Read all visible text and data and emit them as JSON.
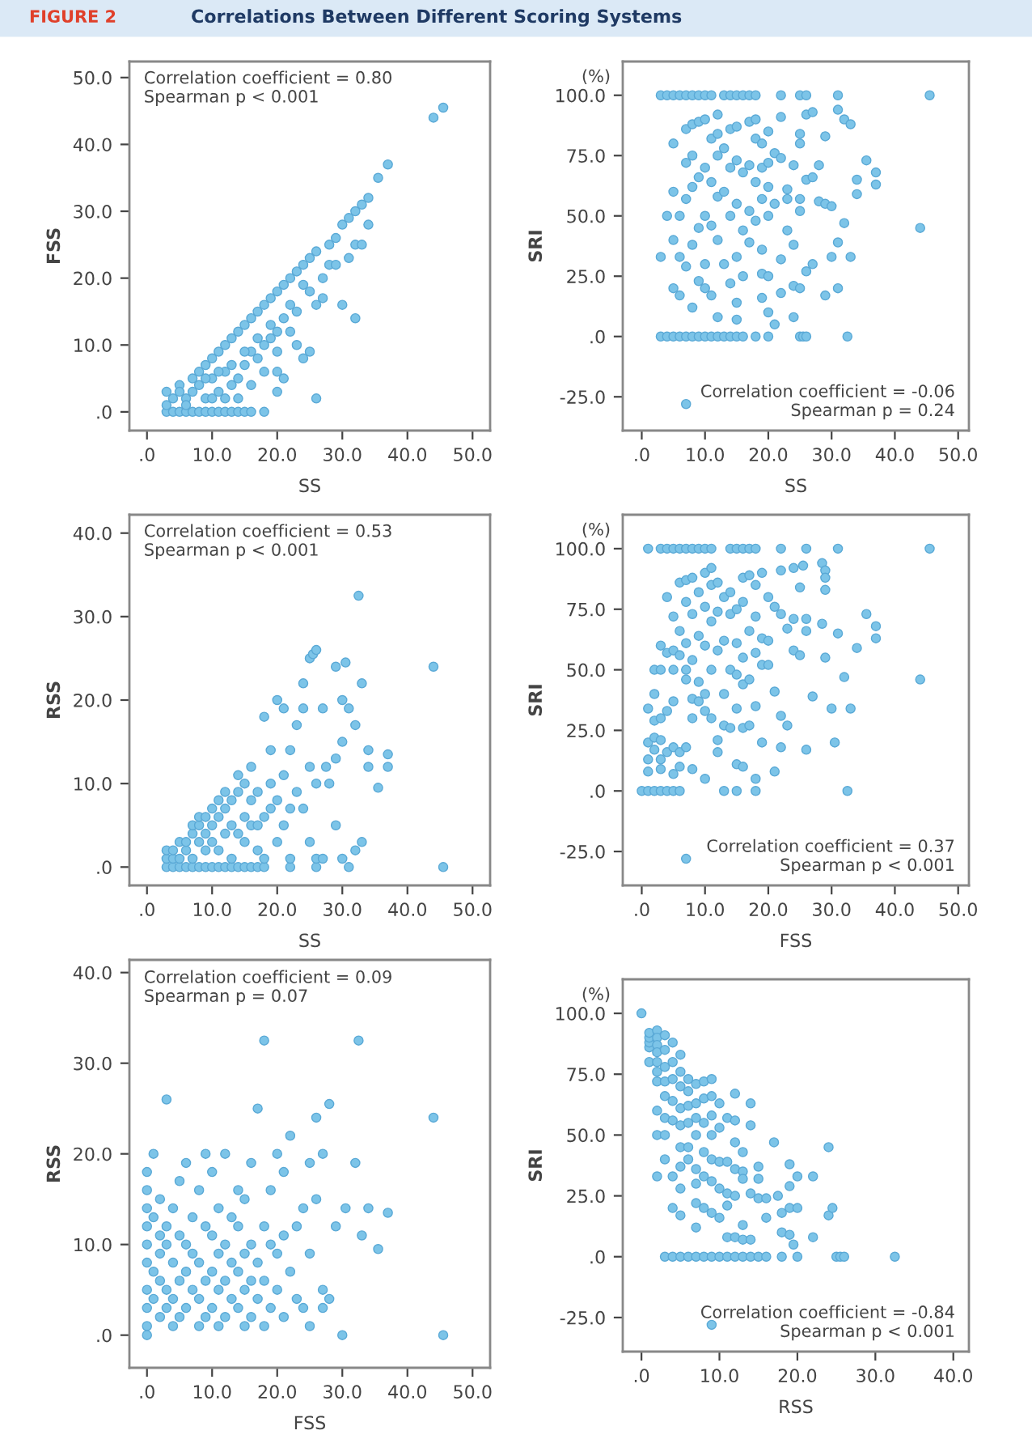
{
  "chart_data": [
    {
      "type": "scatter",
      "title": "Correlations Between Different Scoring Systems",
      "subtitle": "FIGURE 2",
      "xlabel": "SS",
      "ylabel": "FSS",
      "annotations": [
        "Correlation coefficient = 0.80\nSpearman p < 0.001"
      ],
      "color": "#7cc4e8",
      "marker": "circle",
      "xlim": [
        -2.7,
        52.7
      ],
      "xticks": [
        {
          "value": 0,
          "label": ".0"
        },
        {
          "value": 10,
          "label": "10.0"
        },
        {
          "value": 20,
          "label": "20.0"
        },
        {
          "value": 30,
          "label": "30.0"
        },
        {
          "value": 40,
          "label": "40.0"
        },
        {
          "value": 50,
          "label": "50.0"
        }
      ],
      "ylim": [
        -2.8,
        52.4
      ],
      "yticks": [
        {
          "value": 0,
          "label": ".0"
        },
        {
          "value": 10,
          "label": "10.0"
        },
        {
          "value": 20,
          "label": "20.0"
        },
        {
          "value": 30,
          "label": "30.0"
        },
        {
          "value": 40,
          "label": "40.0"
        },
        {
          "value": 50,
          "label": "50.0"
        }
      ],
      "x": [
        3,
        4,
        5,
        6,
        7,
        8,
        9,
        10,
        11,
        12,
        13,
        14,
        15,
        16,
        18,
        3,
        3,
        4,
        5,
        6,
        7,
        8,
        9,
        10,
        11,
        12,
        13,
        14,
        15,
        16,
        17,
        18,
        19,
        20,
        21,
        22,
        23,
        24,
        25,
        26,
        28,
        29,
        30,
        31,
        32,
        33,
        34,
        35.5,
        37,
        44,
        45.5,
        7,
        8,
        9,
        10,
        11,
        12,
        13,
        14,
        15,
        16,
        12,
        10,
        14,
        16,
        17,
        18,
        18,
        19,
        19,
        20,
        20,
        20,
        20,
        21,
        21,
        22,
        23,
        23,
        24,
        25,
        25,
        26,
        26,
        27,
        27,
        30,
        32,
        31,
        32,
        33,
        34,
        28,
        29,
        24,
        22,
        17,
        15,
        13,
        11,
        9,
        6,
        5
      ],
      "values": [
        0,
        0,
        0,
        0,
        0,
        0,
        0,
        0,
        0,
        0,
        0,
        0,
        0,
        0,
        0,
        1,
        3,
        2,
        4,
        2,
        5,
        6,
        7,
        8,
        9,
        10,
        11,
        12,
        13,
        14,
        15,
        16,
        17,
        18,
        19,
        20,
        21,
        22,
        23,
        24,
        25,
        26,
        28,
        29,
        30,
        31,
        32,
        35,
        37,
        44,
        45.5,
        3,
        4,
        2,
        5,
        3,
        6,
        4,
        5,
        7,
        4,
        2,
        2,
        2,
        9,
        8,
        10,
        6,
        11,
        13,
        12,
        9,
        3,
        6,
        5,
        14,
        12,
        15,
        10,
        8,
        9,
        18,
        2,
        16,
        17,
        20,
        16,
        14,
        23,
        25,
        25,
        28,
        22,
        22,
        19,
        16,
        11,
        9,
        7,
        6,
        5,
        1,
        3
      ]
    },
    {
      "type": "scatter",
      "xlabel": "SS",
      "ylabel": "SRI",
      "annotations": [
        "(%)",
        "Correlation coefficient = -0.06\nSpearman p = 0.24"
      ],
      "color": "#7cc4e8",
      "marker": "circle",
      "xlim": [
        -3.0,
        51.7
      ],
      "xticks": [
        {
          "value": 0,
          "label": ".0"
        },
        {
          "value": 10,
          "label": "10.0"
        },
        {
          "value": 20,
          "label": "20.0"
        },
        {
          "value": 30,
          "label": "30.0"
        },
        {
          "value": 40,
          "label": "40.0"
        },
        {
          "value": 50,
          "label": "50.0"
        }
      ],
      "ylim": [
        -39,
        114
      ],
      "yticks": [
        {
          "value": -25,
          "label": "-25.0"
        },
        {
          "value": 0,
          "label": ".0"
        },
        {
          "value": 25,
          "label": "25.0"
        },
        {
          "value": 50,
          "label": "50.0"
        },
        {
          "value": 75,
          "label": "75.0"
        },
        {
          "value": 100,
          "label": "100.0"
        }
      ],
      "x": [
        3,
        4,
        5,
        6,
        7,
        8,
        9,
        10,
        11,
        13,
        14,
        15,
        16,
        17,
        18,
        22,
        25,
        26,
        31,
        45.5,
        3,
        4,
        5,
        6,
        7,
        8,
        9,
        10,
        11,
        12,
        13,
        14,
        15,
        16,
        18,
        20,
        25,
        25.5,
        26,
        32.5,
        3,
        4,
        5,
        5,
        5,
        5,
        6,
        6,
        6,
        7,
        7,
        7,
        7,
        7,
        8,
        8,
        8,
        8,
        8,
        9,
        9,
        9,
        9,
        10,
        10,
        10,
        10,
        10,
        11,
        11,
        11,
        11,
        12,
        12,
        12,
        12,
        12,
        12,
        13,
        13,
        13,
        14,
        14,
        14,
        14,
        15,
        15,
        15,
        15,
        15,
        15,
        16,
        16,
        16,
        17,
        17,
        17,
        17,
        18,
        18,
        18,
        18,
        19,
        19,
        19,
        19,
        19,
        19,
        20,
        20,
        20,
        20,
        20,
        20,
        21,
        21,
        21,
        22,
        22,
        22,
        22,
        23,
        23,
        23,
        24,
        24,
        24,
        24,
        25,
        25,
        25,
        25,
        25,
        26,
        26,
        26,
        27,
        27,
        27,
        28,
        28,
        29,
        29,
        29,
        30,
        30,
        31,
        31,
        31,
        32,
        32,
        33,
        33,
        34,
        34,
        35.5,
        37,
        37,
        44
      ],
      "values": [
        100,
        100,
        100,
        100,
        100,
        100,
        100,
        100,
        100,
        100,
        100,
        100,
        100,
        100,
        100,
        100,
        100,
        100,
        100,
        100,
        0,
        0,
        0,
        0,
        0,
        0,
        0,
        0,
        0,
        0,
        0,
        0,
        0,
        0,
        0,
        0,
        0,
        0,
        0,
        0,
        33,
        50,
        80,
        60,
        40,
        20,
        33,
        17,
        50,
        72,
        86,
        57,
        29,
        -28,
        88,
        75,
        62,
        38,
        12,
        89,
        66,
        45,
        23,
        90,
        70,
        50,
        30,
        20,
        82,
        64,
        46,
        17,
        92,
        84,
        75,
        58,
        40,
        8,
        78,
        60,
        30,
        86,
        70,
        50,
        22,
        87,
        73,
        55,
        33,
        14,
        7,
        68,
        44,
        25,
        89,
        71,
        52,
        39,
        90,
        82,
        64,
        48,
        80,
        70,
        57,
        36,
        26,
        16,
        85,
        72,
        62,
        50,
        25,
        10,
        76,
        55,
        5,
        91,
        74,
        32,
        18,
        61,
        44,
        57,
        71,
        38,
        21,
        8,
        84,
        80,
        57,
        52,
        20,
        92,
        65,
        27,
        93,
        66,
        30,
        71,
        56,
        83,
        55,
        17,
        54,
        33,
        94,
        39,
        20,
        90,
        47,
        88,
        33,
        65,
        59,
        73,
        68,
        63,
        45
      ]
    },
    {
      "type": "scatter",
      "xlabel": "SS",
      "ylabel": "RSS",
      "annotations": [
        "Correlation coefficient = 0.53\nSpearman p < 0.001"
      ],
      "color": "#7cc4e8",
      "marker": "circle",
      "xlim": [
        -2.7,
        52.7
      ],
      "xticks": [
        {
          "value": 0,
          "label": ".0"
        },
        {
          "value": 10,
          "label": "10.0"
        },
        {
          "value": 20,
          "label": "20.0"
        },
        {
          "value": 30,
          "label": "30.0"
        },
        {
          "value": 40,
          "label": "40.0"
        },
        {
          "value": 50,
          "label": "50.0"
        }
      ],
      "ylim": [
        -2.2,
        42.2
      ],
      "yticks": [
        {
          "value": 0,
          "label": ".0"
        },
        {
          "value": 10,
          "label": "10.0"
        },
        {
          "value": 20,
          "label": "20.0"
        },
        {
          "value": 30,
          "label": "30.0"
        },
        {
          "value": 40,
          "label": "40.0"
        }
      ],
      "x": [
        3,
        4,
        5,
        6,
        7,
        8,
        9,
        10,
        11,
        12,
        13,
        14,
        15,
        16,
        17,
        18,
        22,
        26,
        31,
        45.5,
        3,
        3,
        4,
        4,
        5,
        5,
        6,
        6,
        7,
        7,
        7,
        8,
        8,
        8,
        9,
        9,
        9,
        10,
        10,
        10,
        11,
        11,
        11,
        12,
        12,
        12,
        13,
        13,
        13,
        14,
        14,
        14,
        15,
        15,
        15,
        16,
        16,
        16,
        17,
        17,
        17,
        18,
        18,
        18,
        19,
        19,
        19,
        20,
        20,
        20,
        21,
        21,
        21,
        22,
        22,
        22,
        23,
        23,
        24,
        24,
        24,
        25,
        25,
        25,
        25.5,
        26,
        26,
        26,
        27,
        27,
        27.5,
        28,
        29,
        29,
        29,
        30,
        30,
        30,
        30.5,
        31,
        32,
        32,
        32.5,
        33,
        33,
        34,
        34,
        35.5,
        37,
        37,
        44
      ],
      "values": [
        0,
        0,
        0,
        0,
        0,
        0,
        0,
        0,
        0,
        0,
        0,
        0,
        0,
        0,
        0,
        0,
        0,
        0,
        0,
        0,
        1,
        2,
        1,
        2,
        3,
        1,
        2,
        3,
        4,
        5,
        1,
        3,
        5,
        6,
        2,
        4,
        6,
        3,
        5,
        7,
        2,
        6,
        8,
        4,
        7,
        9,
        1,
        5,
        8,
        4,
        9,
        11,
        3,
        6,
        10,
        5,
        8,
        12,
        2,
        5,
        9,
        1,
        6,
        18,
        7,
        10,
        14,
        3,
        8,
        20,
        5,
        11,
        19,
        1,
        7,
        14,
        9,
        17,
        7,
        19,
        22,
        3,
        12,
        25,
        25.5,
        1,
        10,
        26,
        1,
        19,
        12,
        10,
        5,
        13,
        24,
        1,
        15,
        20,
        24.5,
        19,
        2,
        17,
        32.5,
        3,
        22,
        12,
        14,
        9.5,
        12,
        13.5,
        24
      ]
    },
    {
      "type": "scatter",
      "xlabel": "FSS",
      "ylabel": "SRI",
      "annotations": [
        "(%)",
        "Correlation coefficient = 0.37\nSpearman p < 0.001"
      ],
      "color": "#7cc4e8",
      "marker": "circle",
      "xlim": [
        -3.0,
        51.7
      ],
      "xticks": [
        {
          "value": 0,
          "label": ".0"
        },
        {
          "value": 10,
          "label": "10.0"
        },
        {
          "value": 20,
          "label": "20.0"
        },
        {
          "value": 30,
          "label": "30.0"
        },
        {
          "value": 40,
          "label": "40.0"
        },
        {
          "value": 50,
          "label": "50.0"
        }
      ],
      "ylim": [
        -39,
        114
      ],
      "yticks": [
        {
          "value": -25,
          "label": "-25.0"
        },
        {
          "value": 0,
          "label": ".0"
        },
        {
          "value": 25,
          "label": "25.0"
        },
        {
          "value": 50,
          "label": "50.0"
        },
        {
          "value": 75,
          "label": "75.0"
        },
        {
          "value": 100,
          "label": "100.0"
        }
      ],
      "x": [
        1,
        3,
        4,
        5,
        6,
        7,
        8,
        9,
        10,
        11,
        14,
        15,
        16,
        17,
        18,
        22,
        26,
        31,
        45.5,
        0,
        1,
        2,
        3,
        4,
        5,
        6,
        13,
        15,
        18,
        32.5,
        1,
        1,
        1,
        1,
        2,
        2,
        2,
        2,
        2,
        3,
        3,
        3,
        3,
        3,
        3,
        4,
        4,
        4,
        4,
        5,
        5,
        5,
        5,
        5,
        5,
        6,
        6,
        6,
        6,
        6,
        7,
        7,
        7,
        7,
        7,
        7,
        7,
        8,
        8,
        8,
        8,
        8,
        8,
        9,
        9,
        9,
        9,
        10,
        10,
        10,
        10,
        10,
        10,
        11,
        11,
        11,
        11,
        11,
        12,
        12,
        12,
        12,
        12,
        13,
        13,
        13,
        13,
        14,
        14,
        14,
        14,
        15,
        15,
        15,
        15,
        15,
        16,
        16,
        16,
        16,
        16,
        16,
        17,
        17,
        17,
        17,
        18,
        18,
        18,
        18,
        18,
        19,
        19,
        19,
        19,
        20,
        20,
        20,
        21,
        21,
        21,
        22,
        22,
        22,
        22,
        23,
        23,
        24,
        24,
        24,
        25,
        25,
        25.5,
        26,
        26,
        26,
        27,
        28.5,
        28.5,
        29,
        29,
        29,
        29,
        30,
        30.5,
        31,
        32,
        33,
        34,
        35.5,
        37,
        37,
        44
      ],
      "values": [
        100,
        100,
        100,
        100,
        100,
        100,
        100,
        100,
        100,
        100,
        100,
        100,
        100,
        100,
        100,
        100,
        100,
        100,
        100,
        0,
        0,
        0,
        0,
        0,
        0,
        0,
        0,
        0,
        0,
        0,
        34,
        20,
        8,
        13,
        50,
        40,
        29,
        22,
        17,
        60,
        50,
        30,
        21,
        13,
        9,
        80,
        57,
        33,
        16,
        72,
        58,
        50,
        37,
        18,
        7,
        86,
        66,
        56,
        16,
        10,
        87,
        78,
        61,
        50,
        46,
        18,
        -28,
        88,
        73,
        54,
        38,
        30,
        9,
        82,
        64,
        45,
        37,
        90,
        76,
        60,
        40,
        33,
        5,
        92,
        85,
        70,
        50,
        30,
        86,
        74,
        58,
        21,
        16,
        80,
        62,
        40,
        27,
        82,
        73,
        50,
        26,
        75,
        61,
        48,
        34,
        11,
        88,
        78,
        55,
        44,
        26,
        10,
        89,
        66,
        46,
        27,
        85,
        72,
        57,
        35,
        5,
        90,
        63,
        52,
        20,
        80,
        62,
        52,
        76,
        41,
        8,
        91,
        73,
        31,
        18,
        67,
        27,
        92,
        71,
        58,
        84,
        56,
        93,
        71,
        66,
        17,
        39,
        94,
        69,
        91,
        88,
        83,
        55,
        34,
        20,
        65,
        47,
        34,
        59,
        73,
        68,
        63,
        46
      ]
    },
    {
      "type": "scatter",
      "xlabel": "FSS",
      "ylabel": "RSS",
      "annotations": [
        "Correlation coefficient = 0.09\nSpearman p = 0.07"
      ],
      "color": "#7cc4e8",
      "marker": "circle",
      "xlim": [
        -2.7,
        52.7
      ],
      "xticks": [
        {
          "value": 0,
          "label": ".0"
        },
        {
          "value": 10,
          "label": "10.0"
        },
        {
          "value": 20,
          "label": "20.0"
        },
        {
          "value": 30,
          "label": "30.0"
        },
        {
          "value": 40,
          "label": "40.0"
        },
        {
          "value": 50,
          "label": "50.0"
        }
      ],
      "ylim": [
        -3.6,
        41.4
      ],
      "yticks": [
        {
          "value": 0,
          "label": ".0"
        },
        {
          "value": 10,
          "label": "10.0"
        },
        {
          "value": 20,
          "label": "20.0"
        },
        {
          "value": 30,
          "label": "30.0"
        },
        {
          "value": 40,
          "label": "40.0"
        }
      ],
      "x": [
        0,
        0,
        0,
        0,
        0,
        0,
        0,
        0,
        0,
        0,
        1,
        1,
        1,
        1,
        2,
        2,
        2,
        2,
        2,
        3,
        3,
        3,
        3,
        3,
        4,
        4,
        4,
        4,
        5,
        5,
        5,
        5,
        6,
        6,
        6,
        6,
        7,
        7,
        7,
        8,
        8,
        8,
        8,
        9,
        9,
        9,
        9,
        10,
        10,
        10,
        10,
        11,
        11,
        11,
        11,
        12,
        12,
        12,
        12,
        13,
        13,
        13,
        14,
        14,
        14,
        14,
        15,
        15,
        15,
        15,
        16,
        16,
        16,
        16,
        17,
        17,
        17,
        18,
        18,
        18,
        18,
        19,
        19,
        19,
        20,
        20,
        20,
        21,
        21,
        21,
        22,
        22,
        23,
        23,
        24,
        24,
        25,
        25,
        25,
        26,
        26,
        27,
        27,
        27,
        28,
        28,
        29,
        30,
        30.5,
        32,
        32.5,
        33,
        34,
        35.5,
        37,
        44,
        45.5
      ],
      "values": [
        0,
        1,
        3,
        5,
        8,
        10,
        12,
        14,
        16,
        18,
        4,
        7,
        13,
        20,
        2,
        6,
        9,
        11,
        15,
        3,
        5,
        10,
        12,
        26,
        1,
        4,
        8,
        14,
        2,
        6,
        11,
        17,
        3,
        7,
        10,
        19,
        5,
        9,
        13,
        1,
        4,
        8,
        16,
        2,
        6,
        12,
        20,
        3,
        7,
        11,
        18,
        1,
        5,
        9,
        14,
        2,
        6,
        10,
        20,
        4,
        8,
        13,
        3,
        7,
        12,
        16,
        1,
        5,
        9,
        15,
        2,
        6,
        10,
        19,
        4,
        8,
        25,
        1,
        6,
        12,
        32.5,
        3,
        10,
        16,
        5,
        9,
        20,
        2,
        11,
        18,
        7,
        22,
        4,
        12,
        3,
        14,
        1,
        9,
        19,
        24,
        15,
        3,
        5,
        20,
        4,
        25.5,
        12,
        0,
        14,
        19,
        32.5,
        11,
        14,
        9.5,
        13.5,
        24,
        0
      ]
    },
    {
      "type": "scatter",
      "xlabel": "RSS",
      "ylabel": "SRI",
      "annotations": [
        "(%)",
        "Correlation coefficient = -0.84\nSpearman p < 0.001"
      ],
      "color": "#7cc4e8",
      "marker": "circle",
      "xlim": [
        -2.4,
        42.0
      ],
      "xticks": [
        {
          "value": 0,
          "label": ".0"
        },
        {
          "value": 10,
          "label": "10.0"
        },
        {
          "value": 20,
          "label": "20.0"
        },
        {
          "value": 30,
          "label": "30.0"
        },
        {
          "value": 40,
          "label": "40.0"
        }
      ],
      "ylim": [
        -39,
        114
      ],
      "yticks": [
        {
          "value": -25,
          "label": "-25.0"
        },
        {
          "value": 0,
          "label": ".0"
        },
        {
          "value": 25,
          "label": "25.0"
        },
        {
          "value": 50,
          "label": "50.0"
        },
        {
          "value": 75,
          "label": "75.0"
        },
        {
          "value": 100,
          "label": "100.0"
        }
      ],
      "x": [
        3,
        4,
        5,
        6,
        7,
        8,
        9,
        10,
        11,
        12,
        13,
        14,
        15,
        16,
        18,
        20,
        25,
        25.5,
        26,
        32.5,
        0,
        1,
        1,
        1,
        1,
        1,
        2,
        2,
        2,
        2,
        2,
        2,
        2,
        2,
        2,
        2,
        3,
        3,
        3,
        3,
        3,
        3,
        3,
        3,
        4,
        4,
        4,
        4,
        4,
        4,
        4,
        5,
        5,
        5,
        5,
        5,
        5,
        5,
        5,
        5,
        6,
        6,
        6,
        6,
        6,
        6,
        7,
        7,
        7,
        7,
        7,
        7,
        7,
        7,
        8,
        8,
        8,
        8,
        8,
        8,
        9,
        9,
        9,
        9,
        9,
        9,
        9,
        9,
        10,
        10,
        10,
        10,
        10,
        11,
        11,
        11,
        11,
        11,
        12,
        12,
        12,
        12,
        12,
        12,
        13,
        13,
        13,
        13,
        13,
        14,
        14,
        14,
        14,
        15,
        15,
        15,
        16,
        16,
        17,
        17.5,
        18,
        18,
        19,
        19,
        19,
        19,
        19.5,
        20,
        20,
        22,
        22,
        24,
        24,
        24.5
      ],
      "values": [
        0,
        0,
        0,
        0,
        0,
        0,
        0,
        0,
        0,
        0,
        0,
        0,
        0,
        0,
        0,
        0,
        0,
        0,
        0,
        0,
        100,
        80,
        86,
        88,
        90,
        92,
        93,
        90,
        87,
        84,
        80,
        76,
        72,
        60,
        50,
        33,
        91,
        85,
        78,
        72,
        66,
        57,
        50,
        40,
        88,
        80,
        73,
        64,
        56,
        33,
        20,
        83,
        76,
        70,
        61,
        54,
        45,
        37,
        28,
        17,
        73,
        68,
        62,
        55,
        45,
        40,
        71,
        63,
        57,
        50,
        36,
        30,
        22,
        12,
        72,
        65,
        55,
        43,
        33,
        20,
        73,
        66,
        58,
        50,
        40,
        31,
        18,
        -28,
        63,
        53,
        39,
        28,
        16,
        57,
        39,
        26,
        21,
        8,
        67,
        56,
        47,
        36,
        25,
        8,
        43,
        35,
        32,
        13,
        7,
        63,
        54,
        26,
        7,
        37,
        32,
        24,
        24,
        16,
        47,
        25,
        18,
        10,
        38,
        29,
        20,
        9,
        5,
        33,
        20,
        33,
        8,
        45,
        17,
        20
      ]
    }
  ]
}
